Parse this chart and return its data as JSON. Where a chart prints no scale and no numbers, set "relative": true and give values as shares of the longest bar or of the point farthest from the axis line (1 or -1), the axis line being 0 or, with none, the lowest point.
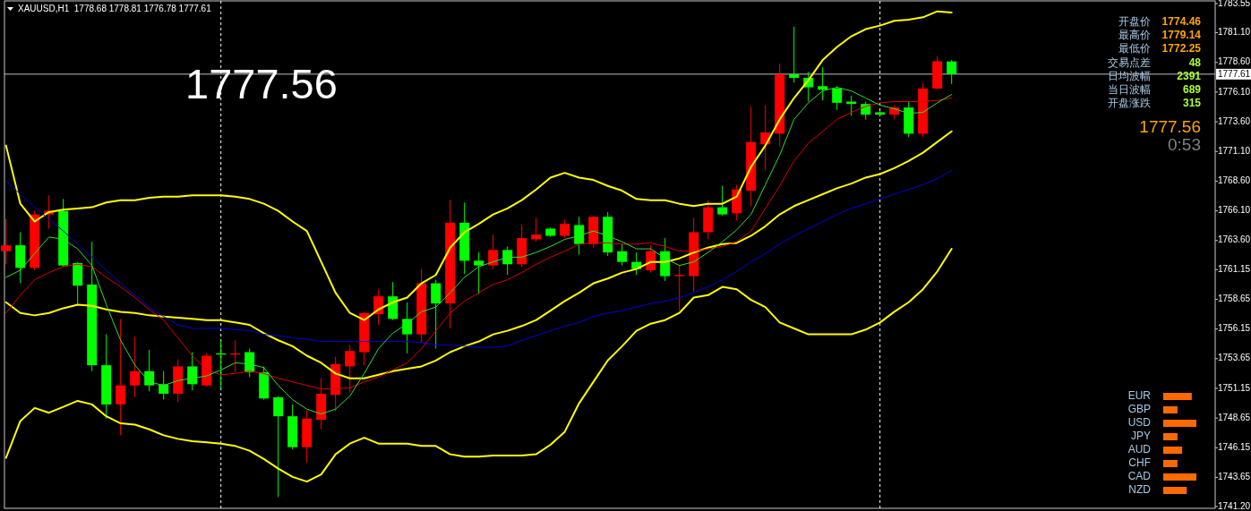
{
  "chart_data": [
    {
      "type": "candlestick",
      "title": "XAUUSD,H1  1778.68 1778.81 1776.78 1777.61",
      "categories": [
        null,
        null,
        null,
        null,
        null,
        null,
        null,
        null,
        null,
        null,
        null,
        null,
        null,
        null,
        null,
        null,
        null,
        null,
        null,
        null,
        null,
        null,
        null,
        null,
        null,
        null,
        null,
        null,
        null,
        null,
        null,
        null,
        null,
        null,
        null,
        null,
        null,
        null,
        null,
        null,
        null,
        null,
        null,
        null,
        null,
        null,
        null,
        null,
        null,
        null,
        null,
        null,
        null,
        null,
        null,
        null,
        null,
        null,
        null,
        null,
        null,
        null,
        null,
        null,
        null,
        null,
        null
      ],
      "ohlc": [
        [
          1762.7,
          1765.4,
          1761.6,
          1763.2
        ],
        [
          1763.2,
          1764.3,
          1760.0,
          1761.3
        ],
        [
          1761.3,
          1766.1,
          1761.1,
          1765.8
        ],
        [
          1765.8,
          1767.4,
          1764.6,
          1766.1
        ],
        [
          1766.1,
          1767.1,
          1761.4,
          1761.5
        ],
        [
          1761.7,
          1761.8,
          1758.2,
          1759.8
        ],
        [
          1759.9,
          1763.5,
          1752.6,
          1753.1
        ],
        [
          1753.1,
          1755.7,
          1748.6,
          1749.8
        ],
        [
          1749.8,
          1757.0,
          1747.2,
          1751.4
        ],
        [
          1751.4,
          1755.5,
          1750.4,
          1752.6
        ],
        [
          1752.6,
          1754.4,
          1750.9,
          1751.4
        ],
        [
          1751.5,
          1752.6,
          1750.2,
          1750.7
        ],
        [
          1750.7,
          1753.6,
          1750.0,
          1753.0
        ],
        [
          1753.0,
          1754.2,
          1751.0,
          1751.5
        ],
        [
          1751.4,
          1754.1,
          1751.3,
          1753.9
        ],
        [
          1754.1,
          1755.2,
          1751.1,
          1754.0
        ],
        [
          1754.0,
          1755.2,
          1752.5,
          1754.1
        ],
        [
          1754.2,
          1754.5,
          1752.1,
          1752.5
        ],
        [
          1752.5,
          1753.0,
          1750.2,
          1750.3
        ],
        [
          1750.4,
          1750.5,
          1742.0,
          1748.8
        ],
        [
          1748.8,
          1749.8,
          1746.0,
          1746.2
        ],
        [
          1746.2,
          1749.3,
          1744.9,
          1748.6
        ],
        [
          1748.5,
          1752.0,
          1747.7,
          1750.7
        ],
        [
          1750.6,
          1753.8,
          1749.2,
          1753.2
        ],
        [
          1753.0,
          1754.8,
          1750.8,
          1754.3
        ],
        [
          1754.2,
          1757.6,
          1753.1,
          1757.5
        ],
        [
          1757.4,
          1759.5,
          1756.5,
          1758.9
        ],
        [
          1758.9,
          1760.1,
          1756.9,
          1757.0
        ],
        [
          1757.0,
          1758.4,
          1754.1,
          1755.7
        ],
        [
          1755.7,
          1761.2,
          1755.0,
          1760.0
        ],
        [
          1760.0,
          1760.3,
          1754.5,
          1758.3
        ],
        [
          1758.3,
          1767.0,
          1756.2,
          1765.1
        ],
        [
          1765.1,
          1766.8,
          1760.8,
          1761.9
        ],
        [
          1761.9,
          1762.6,
          1759.1,
          1761.5
        ],
        [
          1761.5,
          1764.1,
          1761.2,
          1762.8
        ],
        [
          1762.8,
          1763.1,
          1760.7,
          1761.6
        ],
        [
          1761.6,
          1764.9,
          1761.4,
          1763.8
        ],
        [
          1763.7,
          1765.5,
          1763.5,
          1764.1
        ],
        [
          1764.6,
          1764.7,
          1763.9,
          1764.0
        ],
        [
          1764.0,
          1765.4,
          1763.8,
          1765.0
        ],
        [
          1764.9,
          1765.6,
          1762.4,
          1763.3
        ],
        [
          1763.3,
          1765.7,
          1763.0,
          1765.6
        ],
        [
          1765.6,
          1766.0,
          1762.3,
          1762.6
        ],
        [
          1762.7,
          1763.3,
          1761.5,
          1761.8
        ],
        [
          1761.8,
          1762.6,
          1760.7,
          1761.2
        ],
        [
          1761.1,
          1763.2,
          1760.9,
          1762.7
        ],
        [
          1762.7,
          1763.8,
          1760.2,
          1760.6
        ],
        [
          1760.6,
          1761.5,
          1757.7,
          1760.7
        ],
        [
          1760.6,
          1765.5,
          1759.3,
          1764.3
        ],
        [
          1764.3,
          1767.0,
          1763.7,
          1766.4
        ],
        [
          1766.4,
          1768.2,
          1765.7,
          1765.8
        ],
        [
          1765.9,
          1768.3,
          1765.3,
          1767.9
        ],
        [
          1767.8,
          1774.9,
          1766.5,
          1771.9
        ],
        [
          1771.7,
          1775.0,
          1769.5,
          1772.7
        ],
        [
          1772.6,
          1778.5,
          1771.5,
          1777.6
        ],
        [
          1777.6,
          1781.6,
          1776.9,
          1777.3
        ],
        [
          1777.3,
          1777.8,
          1775.3,
          1776.5
        ],
        [
          1776.6,
          1778.2,
          1775.4,
          1776.3
        ],
        [
          1776.4,
          1776.6,
          1774.6,
          1775.2
        ],
        [
          1775.3,
          1775.8,
          1774.1,
          1775.1
        ],
        [
          1775.1,
          1775.3,
          1773.8,
          1774.2
        ],
        [
          1774.4,
          1774.5,
          1774.1,
          1774.2
        ],
        [
          1774.2,
          1775.0,
          1773.8,
          1774.8
        ],
        [
          1774.8,
          1775.3,
          1772.3,
          1772.6
        ],
        [
          1772.6,
          1776.9,
          1772.3,
          1776.4
        ],
        [
          1776.4,
          1779.1,
          1776.3,
          1778.7
        ],
        [
          1778.68,
          1778.81,
          1776.78,
          1777.61
        ]
      ],
      "colors": [
        "#ff0000",
        "#00ff00",
        "#ff0000",
        "#ff0000",
        "#00ff00",
        "#00ff00",
        "#00ff00",
        "#00ff00",
        "#ff0000",
        "#ff0000",
        "#00ff00",
        "#00ff00",
        "#ff0000",
        "#00ff00",
        "#ff0000",
        "#00ff00",
        "#ff0000",
        "#00ff00",
        "#00ff00",
        "#00ff00",
        "#00ff00",
        "#ff0000",
        "#ff0000",
        "#ff0000",
        "#ff0000",
        "#ff0000",
        "#ff0000",
        "#00ff00",
        "#00ff00",
        "#ff0000",
        "#00ff00",
        "#ff0000",
        "#00ff00",
        "#00ff00",
        "#ff0000",
        "#00ff00",
        "#ff0000",
        "#ff0000",
        "#00ff00",
        "#ff0000",
        "#00ff00",
        "#ff0000",
        "#00ff00",
        "#00ff00",
        "#00ff00",
        "#ff0000",
        "#00ff00",
        "#ff0000",
        "#ff0000",
        "#ff0000",
        "#00ff00",
        "#ff0000",
        "#ff0000",
        "#ff0000",
        "#ff0000",
        "#00ff00",
        "#00ff00",
        "#00ff00",
        "#00ff00",
        "#00ff00",
        "#00ff00",
        "#00ff00",
        "#ff0000",
        "#00ff00",
        "#ff0000",
        "#ff0000",
        "#00ff00"
      ],
      "series": [
        {
          "type": "line",
          "color": "#ffff00",
          "values": [
            1771.6,
            1766.7,
            1765.2,
            1766.0,
            1766.2,
            1766.3,
            1766.4,
            1766.8,
            1767.0,
            1767.0,
            1767.2,
            1767.3,
            1767.3,
            1767.4,
            1767.4,
            1767.4,
            1767.3,
            1767.1,
            1766.7,
            1766.1,
            1765.2,
            1764.4,
            1761.8,
            1759.2,
            1757.5,
            1756.9,
            1757.8,
            1758.4,
            1758.8,
            1760.0,
            1760.7,
            1763.0,
            1764.3,
            1765.0,
            1765.8,
            1766.3,
            1767.0,
            1767.9,
            1768.9,
            1769.3,
            1768.9,
            1768.7,
            1768.2,
            1767.8,
            1767.1,
            1767.0,
            1767.0,
            1766.7,
            1766.5,
            1766.7,
            1766.7,
            1767.3,
            1769.8,
            1771.6,
            1773.8,
            1775.6,
            1777.1,
            1778.8,
            1779.9,
            1780.8,
            1781.4,
            1781.7,
            1782.1,
            1782.2,
            1782.4,
            1782.9,
            1782.8
          ]
        },
        {
          "type": "line",
          "color": "#ffff00",
          "values": [
            1758.4,
            1757.5,
            1757.3,
            1757.5,
            1757.9,
            1758.2,
            1758.1,
            1757.8,
            1757.6,
            1757.5,
            1757.3,
            1757.2,
            1757.1,
            1757.0,
            1756.9,
            1756.9,
            1756.7,
            1756.5,
            1755.8,
            1755.2,
            1754.7,
            1753.9,
            1753.3,
            1752.4,
            1752.0,
            1752.0,
            1752.3,
            1752.6,
            1752.8,
            1753.0,
            1753.5,
            1754.2,
            1754.7,
            1755.1,
            1755.7,
            1756.0,
            1756.4,
            1756.9,
            1757.7,
            1758.5,
            1759.2,
            1760.0,
            1760.4,
            1760.9,
            1761.2,
            1761.8,
            1761.8,
            1762.1,
            1762.6,
            1763.0,
            1763.3,
            1763.4,
            1764.0,
            1764.8,
            1765.8,
            1766.5,
            1767.0,
            1767.5,
            1768.0,
            1768.4,
            1768.9,
            1769.2,
            1769.7,
            1770.3,
            1771.0,
            1771.9,
            1772.8
          ]
        },
        {
          "type": "line",
          "color": "#ffff00",
          "values": [
            1745.3,
            1748.4,
            1749.5,
            1749.1,
            1749.6,
            1750.1,
            1749.8,
            1748.8,
            1748.2,
            1748.1,
            1747.7,
            1747.2,
            1746.9,
            1746.7,
            1746.6,
            1746.5,
            1746.3,
            1745.9,
            1745.2,
            1744.4,
            1743.7,
            1743.3,
            1743.9,
            1745.6,
            1746.5,
            1747.0,
            1746.5,
            1746.5,
            1746.5,
            1746.3,
            1746.3,
            1745.6,
            1745.4,
            1745.4,
            1745.5,
            1745.5,
            1745.5,
            1745.6,
            1746.4,
            1747.5,
            1749.9,
            1751.7,
            1753.5,
            1754.7,
            1756.0,
            1756.6,
            1756.9,
            1757.5,
            1758.8,
            1759.0,
            1759.7,
            1759.5,
            1758.6,
            1758.0,
            1756.7,
            1756.2,
            1755.7,
            1755.7,
            1755.7,
            1755.7,
            1756.1,
            1756.7,
            1757.6,
            1758.4,
            1759.5,
            1761.0,
            1762.9
          ]
        },
        {
          "type": "line",
          "color": "#0000dd",
          "values": [
            1768.6,
            1767.5,
            1766.4,
            1765.4,
            1764.4,
            1763.3,
            1762.2,
            1761.1,
            1760.0,
            1759.0,
            1758.0,
            1757.2,
            1756.5,
            1756.2,
            1756.2,
            1756.2,
            1756.1,
            1756.0,
            1755.7,
            1755.6,
            1755.4,
            1755.3,
            1755.1,
            1755.1,
            1755.1,
            1755.1,
            1755.1,
            1755.1,
            1755.1,
            1755.0,
            1754.8,
            1754.8,
            1754.7,
            1754.6,
            1754.6,
            1754.7,
            1755.2,
            1755.6,
            1756.0,
            1756.4,
            1756.7,
            1757.2,
            1757.5,
            1757.7,
            1758.0,
            1758.3,
            1758.5,
            1758.8,
            1759.2,
            1759.7,
            1760.3,
            1761.0,
            1761.8,
            1762.5,
            1763.3,
            1764.0,
            1764.6,
            1765.2,
            1765.8,
            1766.3,
            1766.7,
            1767.1,
            1767.5,
            1767.9,
            1768.3,
            1768.8,
            1769.5
          ]
        },
        {
          "type": "line",
          "color": "#dd0000",
          "values": [
            1757.5,
            1759.0,
            1760.3,
            1760.9,
            1761.4,
            1761.6,
            1761.4,
            1760.5,
            1759.7,
            1758.8,
            1757.8,
            1756.9,
            1755.4,
            1753.9,
            1752.7,
            1752.3,
            1752.4,
            1752.6,
            1752.4,
            1752.0,
            1751.7,
            1751.4,
            1751.1,
            1751.1,
            1751.2,
            1751.7,
            1752.1,
            1752.7,
            1753.3,
            1754.5,
            1756.0,
            1757.5,
            1758.5,
            1759.2,
            1759.9,
            1760.3,
            1760.9,
            1761.6,
            1762.2,
            1762.7,
            1763.3,
            1763.4,
            1763.4,
            1763.3,
            1763.3,
            1763.4,
            1763.1,
            1762.7,
            1762.7,
            1762.9,
            1763.1,
            1763.5,
            1764.4,
            1766.3,
            1768.2,
            1770.3,
            1771.8,
            1772.8,
            1773.8,
            1774.4,
            1774.9,
            1775.2,
            1775.3,
            1775.3,
            1775.3,
            1775.4,
            1775.6
          ]
        },
        {
          "type": "line",
          "color": "#33dd33",
          "values": [
            1760.5,
            1761.1,
            1762.5,
            1763.9,
            1763.7,
            1762.9,
            1761.5,
            1758.2,
            1755.2,
            1753.1,
            1751.7,
            1751.4,
            1751.8,
            1752.0,
            1752.2,
            1752.7,
            1753.3,
            1753.2,
            1752.9,
            1751.4,
            1750.2,
            1749.4,
            1749.0,
            1749.4,
            1750.5,
            1752.4,
            1754.5,
            1755.8,
            1756.6,
            1757.6,
            1758.0,
            1759.2,
            1760.5,
            1761.4,
            1761.8,
            1762.2,
            1762.2,
            1762.6,
            1763.1,
            1763.7,
            1764.0,
            1764.4,
            1764.0,
            1763.5,
            1762.9,
            1762.9,
            1762.1,
            1761.5,
            1761.8,
            1762.6,
            1763.5,
            1764.5,
            1765.8,
            1768.3,
            1770.8,
            1773.8,
            1775.2,
            1776.2,
            1776.5,
            1776.2,
            1775.6,
            1775.0,
            1774.7,
            1774.3,
            1774.4,
            1775.2,
            1775.9
          ]
        }
      ],
      "ylim": [
        1741.05,
        1783.78
      ],
      "yticks": [
        1783.55,
        {
          "value": 1781.1,
          "label": "1781.10"
        },
        {
          "value": 1778.6,
          "label": "1778.60"
        },
        {
          "value": 1776.1,
          "label": "1776.10"
        },
        {
          "value": 1773.6,
          "label": "1773.60"
        },
        {
          "value": 1771.1,
          "label": "1771.10"
        },
        {
          "value": 1768.6,
          "label": "1768.60"
        },
        {
          "value": 1766.1,
          "label": "1766.10"
        },
        {
          "value": 1763.6,
          "label": "1763.60"
        },
        1761.15,
        1758.65,
        1756.15,
        1753.65,
        1751.15,
        1748.65,
        1746.15,
        1743.65,
        {
          "value": 1741.2,
          "label": "1741.20"
        }
      ],
      "tick_labels": "y",
      "ref_lines": [
        {
          "axis": "y",
          "value": 1777.61,
          "label": "1777.61",
          "color": "#c0c0c0"
        }
      ],
      "annotations": [
        "1777.56",
        "开盘价",
        "1774.46",
        "最高价",
        "1779.14",
        "最低价",
        "1772.25",
        "交易点差",
        "48",
        "日均波幅",
        "2391",
        "当日波幅",
        "689",
        "开盘涨跌",
        "315",
        "1777.56",
        "0:53"
      ]
    },
    {
      "type": "bar",
      "orientation": "horizontal",
      "relative": true,
      "categories": [
        "EUR",
        "GBP",
        "USD",
        "JPY",
        "AUD",
        "CHF",
        "CAD",
        "NZD"
      ],
      "values": [
        0.86,
        0.43,
        1,
        0.43,
        0.57,
        0.43,
        1,
        0.71
      ],
      "color": "#ff6a00"
    }
  ]
}
